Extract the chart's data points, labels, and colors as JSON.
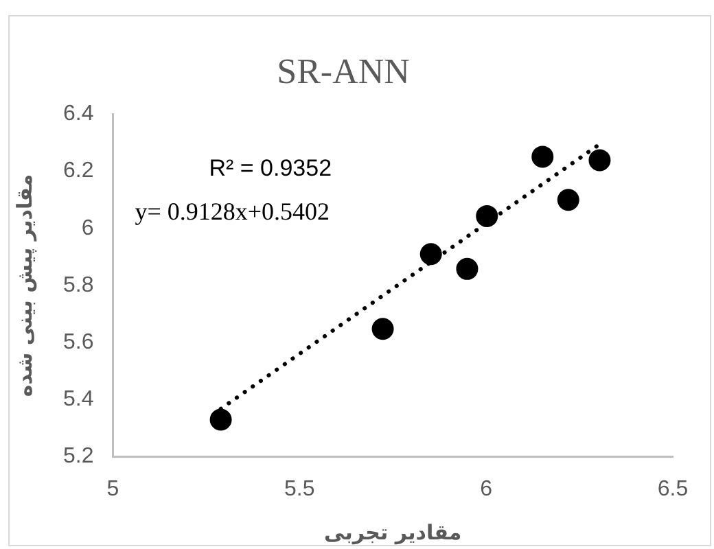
{
  "chart_data": {
    "type": "scatter",
    "title": "SR-ANN",
    "xlabel": "مقادیر تجربی",
    "ylabel": "مقادیر پیش بینی شده",
    "annotations": [
      "R² = 0.9352",
      "y= 0.9128x+0.5402"
    ],
    "series": [
      {
        "type": "scatter",
        "color": "#000000",
        "marker": "circle",
        "x": [
          5.289,
          5.723,
          5.852,
          5.949,
          6.002,
          6.151,
          6.22,
          6.304
        ],
        "values": [
          5.33,
          5.648,
          5.91,
          5.858,
          6.043,
          6.251,
          6.1,
          6.239
        ]
      },
      {
        "type": "line",
        "color": "#000000",
        "marker": "none",
        "line_style": "dotted",
        "x": [
          5.289,
          6.304
        ],
        "values": [
          5.368,
          6.295
        ]
      }
    ],
    "xlim": [
      5,
      6.5
    ],
    "xticks": [
      5,
      5.5,
      6,
      6.5
    ],
    "ylim": [
      5.2,
      6.4
    ],
    "yticks": [
      5.2,
      5.4,
      5.6,
      5.8,
      6,
      6.2,
      6.4
    ],
    "grid": false
  }
}
